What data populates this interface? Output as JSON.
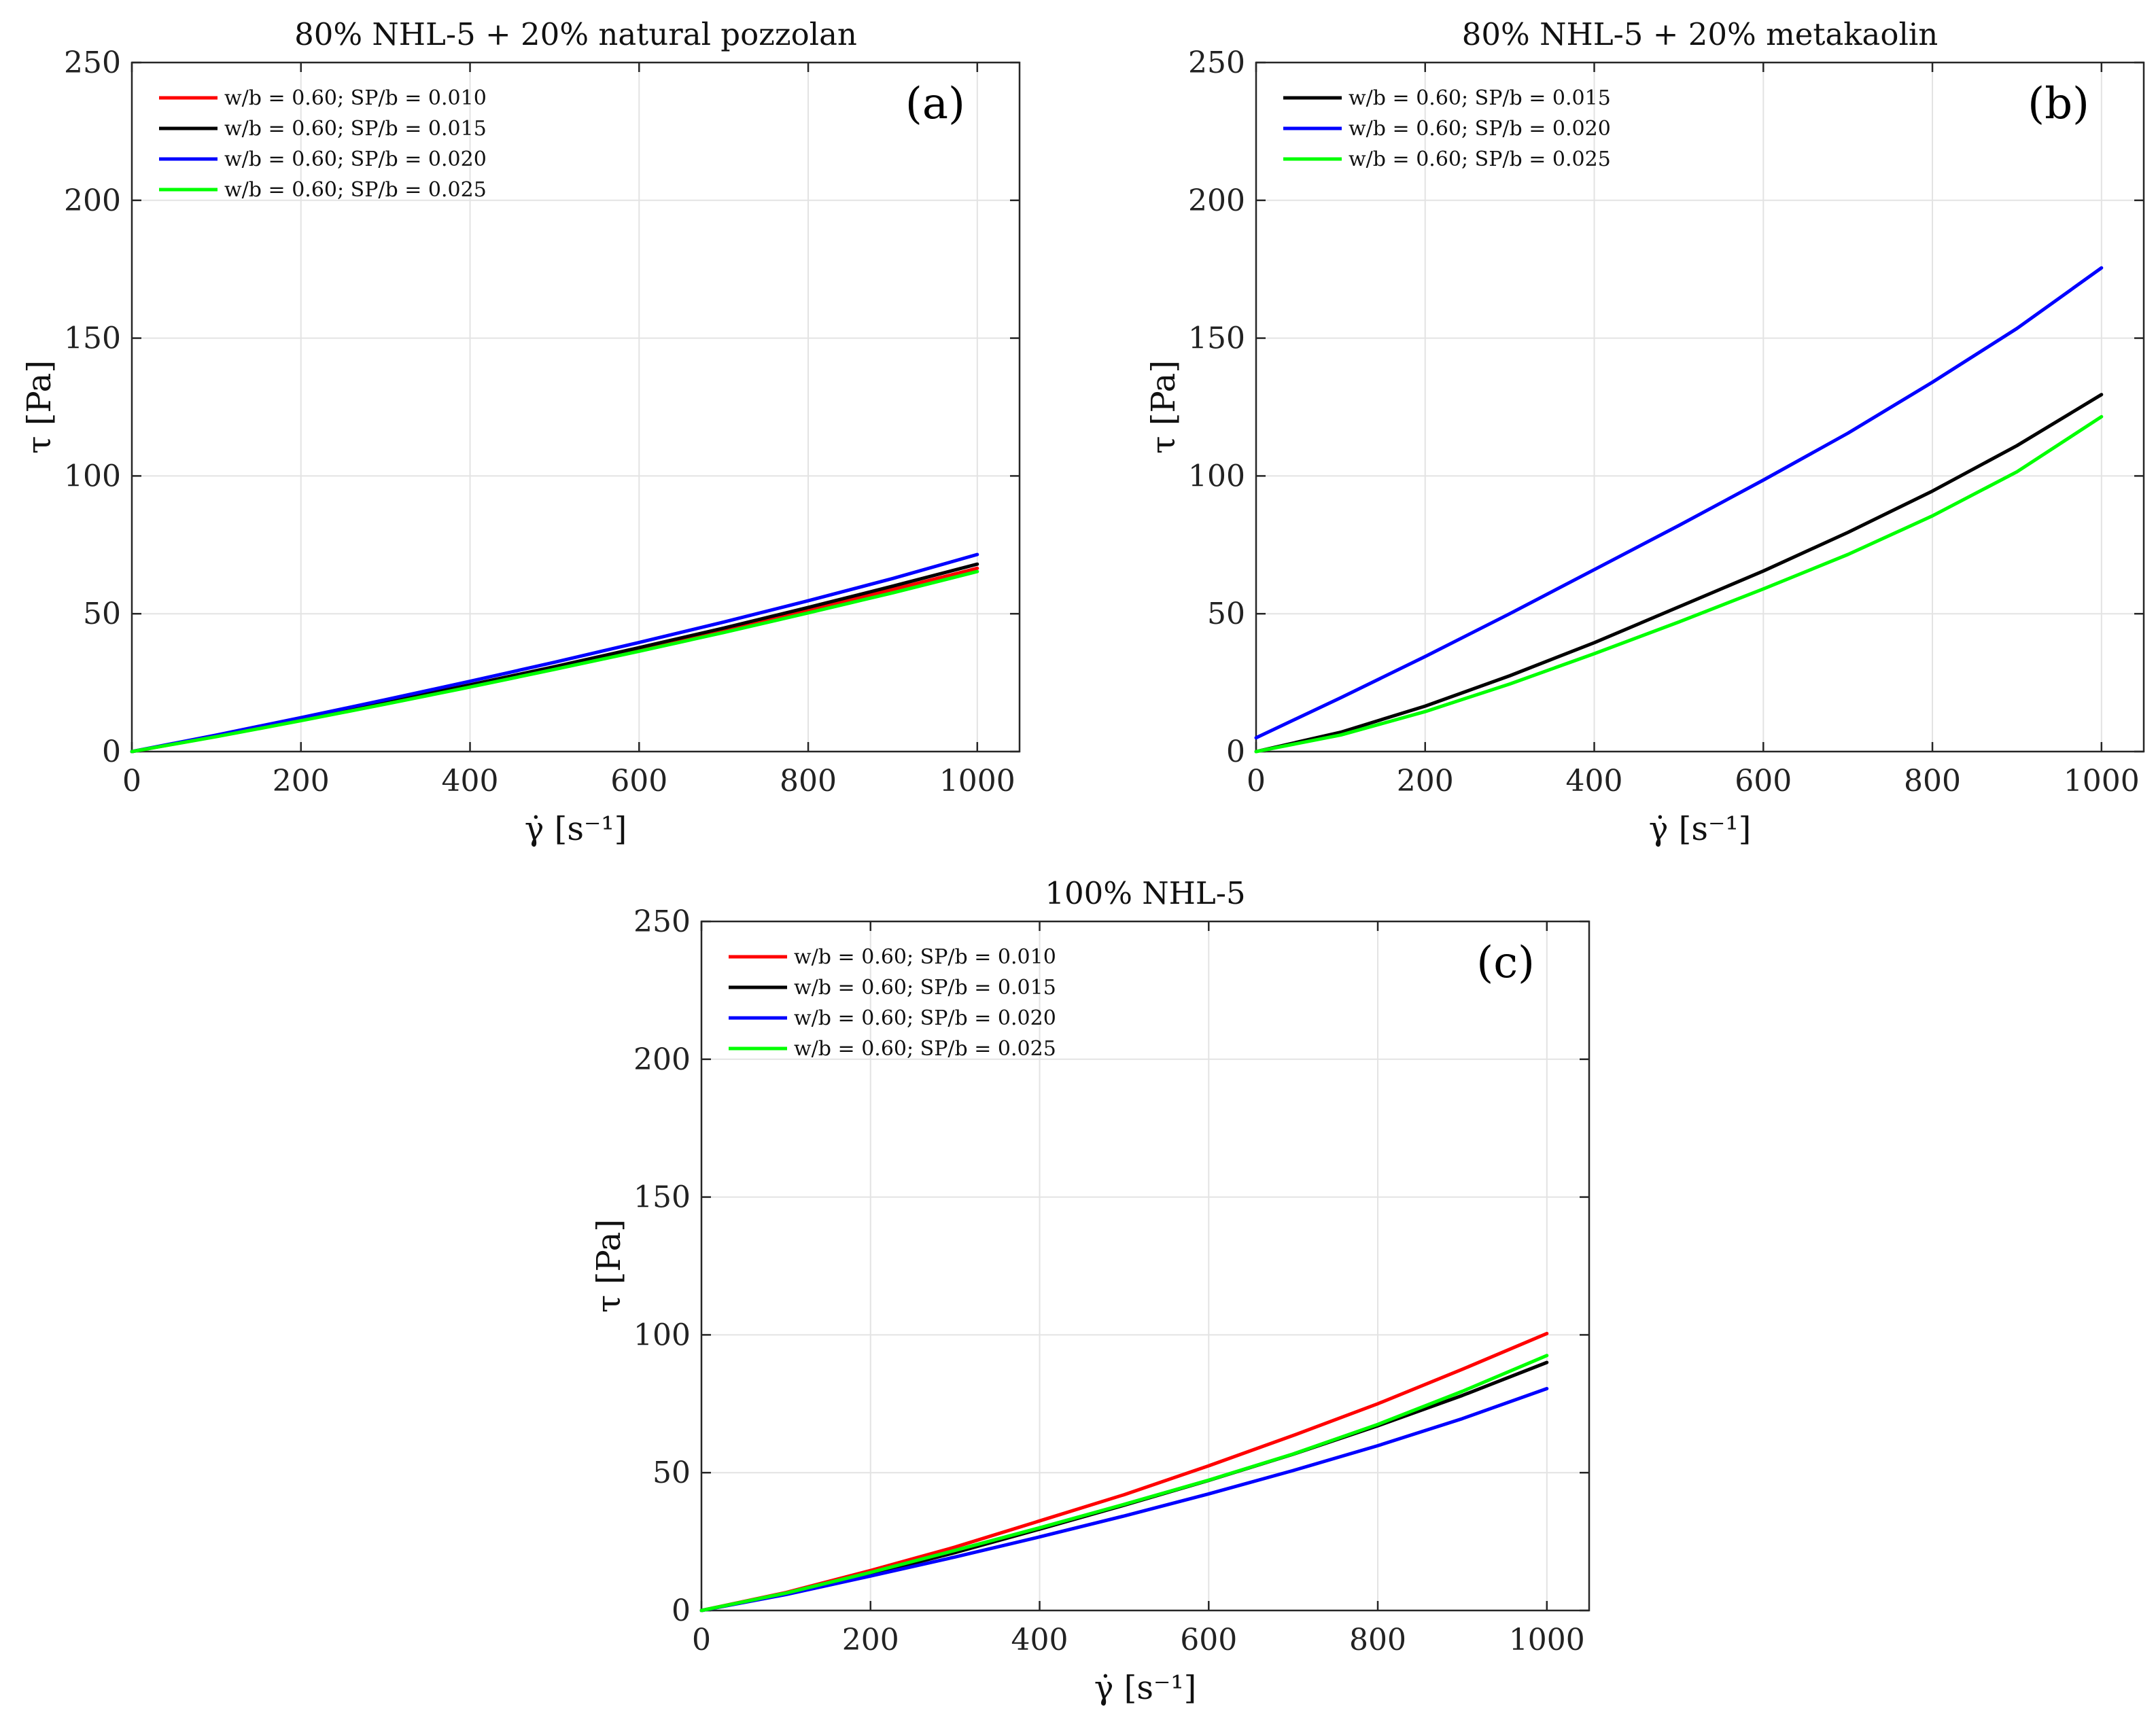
{
  "chart_data": [
    {
      "id": "a",
      "type": "line",
      "title": "80% NHL-5 + 20% natural pozzolan",
      "panel_label": "(a)",
      "xlabel": "γ̇ [s⁻¹]",
      "ylabel": "τ [Pa]",
      "xlim": [
        0,
        1050
      ],
      "ylim": [
        0,
        250
      ],
      "xticks": [
        0,
        200,
        400,
        600,
        800,
        1000
      ],
      "yticks": [
        0,
        50,
        100,
        150,
        200,
        250
      ],
      "grid": true,
      "legend_position": "top-left",
      "x": [
        0,
        100,
        200,
        300,
        400,
        500,
        600,
        700,
        800,
        900,
        1000
      ],
      "series": [
        {
          "name": "w/b = 0.60; SP/b = 0.010",
          "color": "#ff0000",
          "values": [
            0,
            5.5,
            11.5,
            17.5,
            23.8,
            30.2,
            37.0,
            44.0,
            51.2,
            58.8,
            66.5
          ]
        },
        {
          "name": "w/b = 0.60; SP/b = 0.015",
          "color": "#000000",
          "values": [
            0,
            5.6,
            11.6,
            17.8,
            24.2,
            30.8,
            37.7,
            44.8,
            52.3,
            60.0,
            68.0
          ]
        },
        {
          "name": "w/b = 0.60; SP/b = 0.020",
          "color": "#0000ff",
          "values": [
            0,
            6.0,
            12.3,
            18.8,
            25.5,
            32.4,
            39.6,
            47.0,
            54.7,
            62.8,
            71.5
          ]
        },
        {
          "name": "w/b = 0.60; SP/b = 0.025",
          "color": "#00ff00",
          "values": [
            0,
            5.4,
            11.2,
            17.2,
            23.4,
            29.8,
            36.4,
            43.2,
            50.3,
            57.6,
            65.3
          ]
        }
      ]
    },
    {
      "id": "b",
      "type": "line",
      "title": "80% NHL-5 + 20% metakaolin",
      "panel_label": "(b)",
      "xlabel": "γ̇ [s⁻¹]",
      "ylabel": "τ [Pa]",
      "xlim": [
        0,
        1050
      ],
      "ylim": [
        0,
        250
      ],
      "xticks": [
        0,
        200,
        400,
        600,
        800,
        1000
      ],
      "yticks": [
        0,
        50,
        100,
        150,
        200,
        250
      ],
      "grid": true,
      "legend_position": "top-left",
      "x": [
        0,
        100,
        200,
        300,
        400,
        500,
        600,
        700,
        800,
        900,
        1000
      ],
      "series": [
        {
          "name": "w/b = 0.60; SP/b = 0.015",
          "color": "#000000",
          "values": [
            0,
            7.0,
            16.5,
            27.5,
            39.5,
            52.5,
            65.5,
            79.5,
            94.5,
            111.0,
            129.5
          ]
        },
        {
          "name": "w/b = 0.60; SP/b = 0.020",
          "color": "#0000ff",
          "values": [
            5.0,
            19.5,
            34.5,
            50.0,
            66.0,
            82.0,
            98.5,
            115.5,
            134.0,
            153.5,
            175.5
          ]
        },
        {
          "name": "w/b = 0.60; SP/b = 0.025",
          "color": "#00ff00",
          "values": [
            0,
            6.0,
            14.5,
            24.5,
            35.5,
            47.0,
            59.0,
            71.5,
            85.5,
            101.5,
            121.5
          ]
        }
      ]
    },
    {
      "id": "c",
      "type": "line",
      "title": "100% NHL-5",
      "panel_label": "(c)",
      "xlabel": "γ̇ [s⁻¹]",
      "ylabel": "τ [Pa]",
      "xlim": [
        0,
        1050
      ],
      "ylim": [
        0,
        250
      ],
      "xticks": [
        0,
        200,
        400,
        600,
        800,
        1000
      ],
      "yticks": [
        0,
        50,
        100,
        150,
        200,
        250
      ],
      "grid": true,
      "legend_position": "top-left",
      "x": [
        0,
        100,
        200,
        300,
        400,
        500,
        600,
        700,
        800,
        900,
        1000
      ],
      "series": [
        {
          "name": "w/b = 0.60; SP/b = 0.010",
          "color": "#ff0000",
          "values": [
            0,
            6.5,
            14.5,
            23.0,
            32.5,
            42.0,
            52.5,
            63.5,
            75.0,
            87.5,
            100.5
          ]
        },
        {
          "name": "w/b = 0.60; SP/b = 0.015",
          "color": "#000000",
          "values": [
            0,
            6.0,
            13.2,
            21.0,
            29.5,
            38.2,
            47.2,
            56.7,
            67.0,
            78.0,
            90.0
          ]
        },
        {
          "name": "w/b = 0.60; SP/b = 0.020",
          "color": "#0000ff",
          "values": [
            0,
            5.8,
            12.5,
            19.4,
            26.7,
            34.3,
            42.3,
            50.8,
            59.8,
            69.6,
            80.5
          ]
        },
        {
          "name": "w/b = 0.60; SP/b = 0.025",
          "color": "#00ff00",
          "values": [
            0,
            6.3,
            13.8,
            21.8,
            30.0,
            38.5,
            47.3,
            56.8,
            67.5,
            79.5,
            92.5
          ]
        }
      ]
    }
  ]
}
